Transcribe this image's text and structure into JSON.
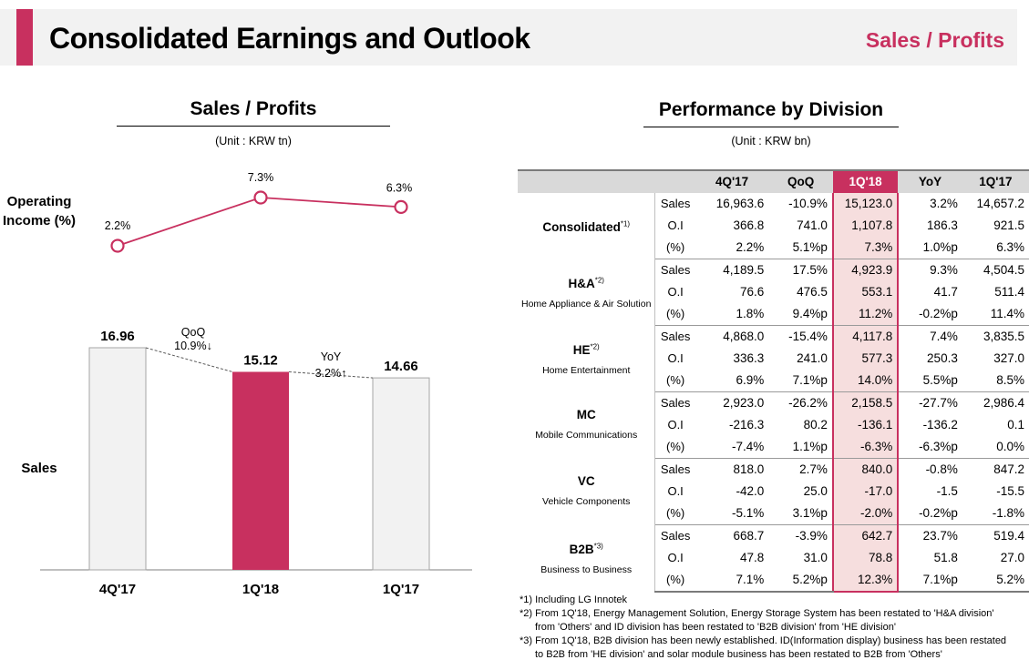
{
  "header": {
    "title": "Consolidated Earnings and Outlook",
    "tag": "Sales / Profits",
    "accent_color": "#c8305f"
  },
  "left_section": {
    "title": "Sales / Profits",
    "unit": "(Unit : KRW tn)",
    "op_income_label": "Operating Income (%)",
    "sales_label": "Sales"
  },
  "right_section": {
    "title": "Performance by Division",
    "unit": "(Unit : KRW bn)"
  },
  "chart_data": {
    "type": "bar",
    "categories": [
      "4Q'17",
      "1Q'18",
      "1Q'17"
    ],
    "series": [
      {
        "name": "Sales",
        "values": [
          16.96,
          15.12,
          14.66
        ],
        "value_labels": [
          "16.96",
          "15.12",
          "14.66"
        ]
      },
      {
        "name": "Operating Income",
        "type": "line",
        "values": [
          2.2,
          7.3,
          6.3
        ],
        "value_labels": [
          "2.2%",
          "7.3%",
          "6.3%"
        ]
      }
    ],
    "annotations": [
      {
        "label": "QoQ",
        "value": "10.9%↓"
      },
      {
        "label": "YoY",
        "value": "3.2%↑"
      }
    ],
    "highlight_category": "1Q'18",
    "colors": {
      "bar": "#f2f2f2",
      "bar_highlight": "#c8305f",
      "line": "#c8305f"
    }
  },
  "table": {
    "columns": [
      "4Q'17",
      "QoQ",
      "1Q'18",
      "YoY",
      "1Q'17"
    ],
    "highlight_column": 2,
    "groups": [
      {
        "code": "Consolidated",
        "sup": "*1)",
        "name": "",
        "rows": [
          {
            "label": "Sales",
            "values": [
              "16,963.6",
              "-10.9%",
              "15,123.0",
              "3.2%",
              "14,657.2"
            ]
          },
          {
            "label": "O.I",
            "values": [
              "366.8",
              "741.0",
              "1,107.8",
              "186.3",
              "921.5"
            ]
          },
          {
            "label": "(%)",
            "values": [
              "2.2%",
              "5.1%p",
              "7.3%",
              "1.0%p",
              "6.3%"
            ]
          }
        ]
      },
      {
        "code": "H&A",
        "sup": "*2)",
        "name": "Home Appliance & Air Solution",
        "rows": [
          {
            "label": "Sales",
            "values": [
              "4,189.5",
              "17.5%",
              "4,923.9",
              "9.3%",
              "4,504.5"
            ]
          },
          {
            "label": "O.I",
            "values": [
              "76.6",
              "476.5",
              "553.1",
              "41.7",
              "511.4"
            ]
          },
          {
            "label": "(%)",
            "values": [
              "1.8%",
              "9.4%p",
              "11.2%",
              "-0.2%p",
              "11.4%"
            ]
          }
        ]
      },
      {
        "code": "HE",
        "sup": "*2)",
        "name": "Home Entertainment",
        "rows": [
          {
            "label": "Sales",
            "values": [
              "4,868.0",
              "-15.4%",
              "4,117.8",
              "7.4%",
              "3,835.5"
            ]
          },
          {
            "label": "O.I",
            "values": [
              "336.3",
              "241.0",
              "577.3",
              "250.3",
              "327.0"
            ]
          },
          {
            "label": "(%)",
            "values": [
              "6.9%",
              "7.1%p",
              "14.0%",
              "5.5%p",
              "8.5%"
            ]
          }
        ]
      },
      {
        "code": "MC",
        "sup": "",
        "name": "Mobile Communications",
        "rows": [
          {
            "label": "Sales",
            "values": [
              "2,923.0",
              "-26.2%",
              "2,158.5",
              "-27.7%",
              "2,986.4"
            ]
          },
          {
            "label": "O.I",
            "values": [
              "-216.3",
              "80.2",
              "-136.1",
              "-136.2",
              "0.1"
            ]
          },
          {
            "label": "(%)",
            "values": [
              "-7.4%",
              "1.1%p",
              "-6.3%",
              "-6.3%p",
              "0.0%"
            ]
          }
        ]
      },
      {
        "code": "VC",
        "sup": "",
        "name": "Vehicle Components",
        "rows": [
          {
            "label": "Sales",
            "values": [
              "818.0",
              "2.7%",
              "840.0",
              "-0.8%",
              "847.2"
            ]
          },
          {
            "label": "O.I",
            "values": [
              "-42.0",
              "25.0",
              "-17.0",
              "-1.5",
              "-15.5"
            ]
          },
          {
            "label": "(%)",
            "values": [
              "-5.1%",
              "3.1%p",
              "-2.0%",
              "-0.2%p",
              "-1.8%"
            ]
          }
        ]
      },
      {
        "code": "B2B",
        "sup": "*3)",
        "name": "Business to Business",
        "rows": [
          {
            "label": "Sales",
            "values": [
              "668.7",
              "-3.9%",
              "642.7",
              "23.7%",
              "519.4"
            ]
          },
          {
            "label": "O.I",
            "values": [
              "47.8",
              "31.0",
              "78.8",
              "51.8",
              "27.0"
            ]
          },
          {
            "label": "(%)",
            "values": [
              "7.1%",
              "5.2%p",
              "12.3%",
              "7.1%p",
              "5.2%"
            ]
          }
        ]
      }
    ]
  },
  "footnotes": [
    {
      "lines": [
        "*1) Including LG Innotek"
      ]
    },
    {
      "lines": [
        "*2) From 1Q'18, Energy Management Solution, Energy Storage System has been restated to 'H&A division'",
        "from 'Others' and ID division has been restated to 'B2B division' from 'HE division'"
      ]
    },
    {
      "lines": [
        "*3) From 1Q'18, B2B division has been newly established. ID(Information display) business has been restated",
        "to B2B from 'HE division' and solar module business has been restated to B2B from 'Others'"
      ]
    }
  ]
}
